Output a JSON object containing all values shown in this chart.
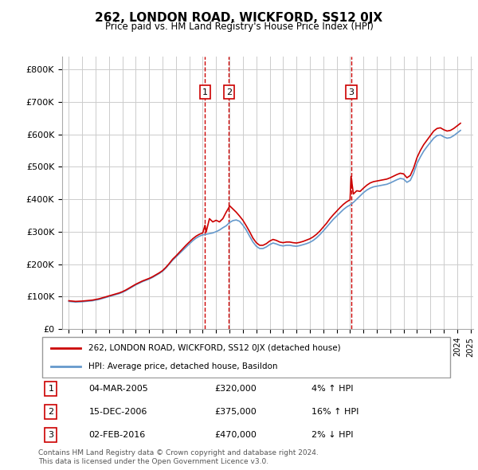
{
  "title": "262, LONDON ROAD, WICKFORD, SS12 0JX",
  "subtitle": "Price paid vs. HM Land Registry's House Price Index (HPI)",
  "legend_line1": "262, LONDON ROAD, WICKFORD, SS12 0JX (detached house)",
  "legend_line2": "HPI: Average price, detached house, Basildon",
  "transactions": [
    {
      "num": 1,
      "date": "04-MAR-2005",
      "price": 320000,
      "pct": "4%",
      "dir": "↑",
      "year": 2005.17
    },
    {
      "num": 2,
      "date": "15-DEC-2006",
      "price": 375000,
      "pct": "16%",
      "dir": "↑",
      "year": 2006.96
    },
    {
      "num": 3,
      "date": "02-FEB-2016",
      "price": 470000,
      "pct": "2%",
      "dir": "↓",
      "year": 2016.08
    }
  ],
  "footnote1": "Contains HM Land Registry data © Crown copyright and database right 2024.",
  "footnote2": "This data is licensed under the Open Government Licence v3.0.",
  "red_color": "#cc0000",
  "blue_color": "#6699cc",
  "ylim": [
    0,
    840000
  ],
  "yticks": [
    0,
    100000,
    200000,
    300000,
    400000,
    500000,
    600000,
    700000,
    800000
  ],
  "hpi_data": {
    "years": [
      1995.0,
      1995.25,
      1995.5,
      1995.75,
      1996.0,
      1996.25,
      1996.5,
      1996.75,
      1997.0,
      1997.25,
      1997.5,
      1997.75,
      1998.0,
      1998.25,
      1998.5,
      1998.75,
      1999.0,
      1999.25,
      1999.5,
      1999.75,
      2000.0,
      2000.25,
      2000.5,
      2000.75,
      2001.0,
      2001.25,
      2001.5,
      2001.75,
      2002.0,
      2002.25,
      2002.5,
      2002.75,
      2003.0,
      2003.25,
      2003.5,
      2003.75,
      2004.0,
      2004.25,
      2004.5,
      2004.75,
      2005.0,
      2005.25,
      2005.5,
      2005.75,
      2006.0,
      2006.25,
      2006.5,
      2006.75,
      2007.0,
      2007.25,
      2007.5,
      2007.75,
      2008.0,
      2008.25,
      2008.5,
      2008.75,
      2009.0,
      2009.25,
      2009.5,
      2009.75,
      2010.0,
      2010.25,
      2010.5,
      2010.75,
      2011.0,
      2011.25,
      2011.5,
      2011.75,
      2012.0,
      2012.25,
      2012.5,
      2012.75,
      2013.0,
      2013.25,
      2013.5,
      2013.75,
      2014.0,
      2014.25,
      2014.5,
      2014.75,
      2015.0,
      2015.25,
      2015.5,
      2015.75,
      2016.0,
      2016.25,
      2016.5,
      2016.75,
      2017.0,
      2017.25,
      2017.5,
      2017.75,
      2018.0,
      2018.25,
      2018.5,
      2018.75,
      2019.0,
      2019.25,
      2019.5,
      2019.75,
      2020.0,
      2020.25,
      2020.5,
      2020.75,
      2021.0,
      2021.25,
      2021.5,
      2021.75,
      2022.0,
      2022.25,
      2022.5,
      2022.75,
      2023.0,
      2023.25,
      2023.5,
      2023.75,
      2024.0,
      2024.25
    ],
    "values": [
      85000,
      84000,
      83000,
      83500,
      84000,
      85000,
      86000,
      87000,
      89000,
      91000,
      94000,
      97000,
      100000,
      103000,
      106000,
      109000,
      113000,
      118000,
      124000,
      130000,
      136000,
      141000,
      146000,
      150000,
      154000,
      159000,
      165000,
      171000,
      178000,
      188000,
      200000,
      212000,
      222000,
      232000,
      242000,
      252000,
      262000,
      272000,
      280000,
      286000,
      290000,
      292000,
      294000,
      296000,
      300000,
      305000,
      312000,
      318000,
      328000,
      334000,
      336000,
      332000,
      320000,
      305000,
      286000,
      268000,
      255000,
      248000,
      248000,
      253000,
      260000,
      265000,
      262000,
      258000,
      256000,
      258000,
      258000,
      256000,
      255000,
      257000,
      260000,
      263000,
      267000,
      273000,
      281000,
      291000,
      302000,
      314000,
      326000,
      338000,
      348000,
      358000,
      368000,
      376000,
      382000,
      390000,
      400000,
      410000,
      420000,
      428000,
      434000,
      438000,
      440000,
      442000,
      444000,
      446000,
      450000,
      455000,
      460000,
      464000,
      462000,
      452000,
      458000,
      480000,
      510000,
      530000,
      548000,
      562000,
      575000,
      588000,
      596000,
      598000,
      592000,
      588000,
      590000,
      596000,
      604000,
      612000
    ]
  },
  "price_data": {
    "years": [
      1995.0,
      1995.25,
      1995.5,
      1995.75,
      1996.0,
      1996.25,
      1996.5,
      1996.75,
      1997.0,
      1997.25,
      1997.5,
      1997.75,
      1998.0,
      1998.25,
      1998.5,
      1998.75,
      1999.0,
      1999.25,
      1999.5,
      1999.75,
      2000.0,
      2000.25,
      2000.5,
      2000.75,
      2001.0,
      2001.25,
      2001.5,
      2001.75,
      2002.0,
      2002.25,
      2002.5,
      2002.75,
      2003.0,
      2003.25,
      2003.5,
      2003.75,
      2004.0,
      2004.25,
      2004.5,
      2004.75,
      2005.0,
      2005.17,
      2005.25,
      2005.5,
      2005.75,
      2006.0,
      2006.25,
      2006.5,
      2006.75,
      2006.96,
      2007.0,
      2007.25,
      2007.5,
      2007.75,
      2008.0,
      2008.25,
      2008.5,
      2008.75,
      2009.0,
      2009.25,
      2009.5,
      2009.75,
      2010.0,
      2010.25,
      2010.5,
      2010.75,
      2011.0,
      2011.25,
      2011.5,
      2011.75,
      2012.0,
      2012.25,
      2012.5,
      2012.75,
      2013.0,
      2013.25,
      2013.5,
      2013.75,
      2014.0,
      2014.25,
      2014.5,
      2014.75,
      2015.0,
      2015.25,
      2015.5,
      2015.75,
      2016.0,
      2016.08,
      2016.25,
      2016.5,
      2016.75,
      2017.0,
      2017.25,
      2017.5,
      2017.75,
      2018.0,
      2018.25,
      2018.5,
      2018.75,
      2019.0,
      2019.25,
      2019.5,
      2019.75,
      2020.0,
      2020.25,
      2020.5,
      2020.75,
      2021.0,
      2021.25,
      2021.5,
      2021.75,
      2022.0,
      2022.25,
      2022.5,
      2022.75,
      2023.0,
      2023.25,
      2023.5,
      2023.75,
      2024.0,
      2024.25
    ],
    "values": [
      87000,
      86000,
      85000,
      85500,
      86000,
      87000,
      88000,
      89000,
      91000,
      93000,
      96000,
      99000,
      102000,
      105000,
      108000,
      111000,
      115000,
      120000,
      126000,
      132000,
      138000,
      143000,
      148000,
      152000,
      156000,
      161000,
      167000,
      173000,
      180000,
      190000,
      202000,
      215000,
      225000,
      236000,
      247000,
      258000,
      268000,
      278000,
      286000,
      292000,
      296000,
      320000,
      298000,
      340000,
      330000,
      335000,
      330000,
      340000,
      360000,
      375000,
      380000,
      370000,
      360000,
      348000,
      335000,
      318000,
      300000,
      280000,
      266000,
      258000,
      258000,
      263000,
      271000,
      276000,
      273000,
      268000,
      266000,
      268000,
      268000,
      266000,
      265000,
      267000,
      270000,
      274000,
      278000,
      284000,
      292000,
      302000,
      314000,
      326000,
      340000,
      352000,
      363000,
      374000,
      384000,
      392000,
      398000,
      470000,
      416000,
      426000,
      424000,
      434000,
      443000,
      450000,
      454000,
      456000,
      458000,
      460000,
      462000,
      466000,
      471000,
      476000,
      480000,
      478000,
      466000,
      473000,
      496000,
      528000,
      550000,
      568000,
      582000,
      596000,
      610000,
      618000,
      620000,
      614000,
      610000,
      612000,
      618000,
      626000,
      634000
    ]
  }
}
